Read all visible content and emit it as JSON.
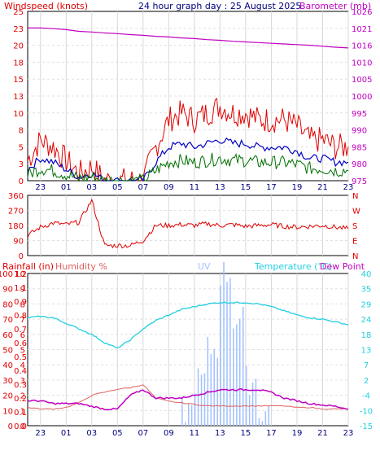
{
  "colors": {
    "wind_gust": "#e00000",
    "wind_avg": "#0000c0",
    "wind_min": "#007000",
    "barometer": "#c000c0",
    "direction": "#e00000",
    "temperature": "#20d0e0",
    "dewpoint": "#c000c0",
    "humidity": "#e06060",
    "uv": "#a0c0ff",
    "rain": "#e00000"
  },
  "charts": {
    "wind": {
      "title": "24 hour graph day : 25 August 2025",
      "left_label": "Windspeed (knots)",
      "right_label": "Barometer (mb)",
      "left_ticks": [
        "0",
        "3",
        "5",
        "8",
        "10",
        "13",
        "15",
        "18",
        "20",
        "23",
        "25"
      ],
      "right_ticks": [
        "975",
        "980",
        "985",
        "990",
        "995",
        "1000",
        "1005",
        "1010",
        "1016",
        "1021",
        "1026"
      ]
    },
    "direction": {
      "left_ticks": [
        "0",
        "90",
        "180",
        "270",
        "360"
      ],
      "right_ticks": [
        "N",
        "E",
        "S",
        "W",
        "N"
      ]
    },
    "temp": {
      "rain_label": "Rainfall (in)",
      "humidity_label": "Humidity %",
      "uv_label": "UV",
      "temp_label": "Temperature (°C)",
      "dew_label": "Dew Point",
      "rain_ticks": [
        "0.0",
        "0.1",
        "0.2",
        "0.3",
        "0.4",
        "0.5",
        "0.6",
        "0.7",
        "0.8",
        "0.9",
        "1.1",
        "1.2"
      ],
      "humidity_ticks": [
        "0",
        "10",
        "20",
        "30",
        "40",
        "50",
        "60",
        "70",
        "80",
        "90",
        "100"
      ],
      "uv_ticks": [
        "0",
        "1",
        "2",
        "3",
        "4",
        "5",
        "6",
        "7",
        "8",
        "9",
        "10"
      ],
      "temp_ticks": [
        "-15",
        "-10",
        "-4",
        "2",
        "7",
        "13",
        "18",
        "24",
        "29",
        "35",
        "40"
      ]
    }
  },
  "x_axis_labels": [
    "23",
    "01",
    "03",
    "05",
    "07",
    "09",
    "11",
    "13",
    "15",
    "17",
    "19",
    "21",
    "23"
  ],
  "chart_data": [
    {
      "type": "line",
      "title": "24 hour graph day : 25 August 2025",
      "xlabel": "",
      "ylabel": "Windspeed (knots)",
      "ylabel_right": "Barometer (mb)",
      "ylim": [
        0,
        25
      ],
      "ylim_right": [
        975,
        1026
      ],
      "x": [
        "22",
        "23",
        "00",
        "01",
        "02",
        "03",
        "04",
        "05",
        "06",
        "07",
        "08",
        "09",
        "10",
        "11",
        "12",
        "13",
        "14",
        "15",
        "16",
        "17",
        "18",
        "19",
        "20",
        "21",
        "22",
        "23"
      ],
      "series": [
        {
          "name": "Windspeed (knots)",
          "values": [
            3,
            6,
            5,
            3,
            1,
            2,
            0,
            0,
            0,
            0,
            5,
            9,
            10,
            9,
            10,
            11,
            10,
            10,
            9,
            9,
            9,
            8,
            6,
            6,
            5,
            5
          ]
        },
        {
          "name": "Barometer (mb)",
          "values": [
            1021,
            1021,
            1020.8,
            1020.5,
            1020,
            1019.8,
            1019.5,
            1019.3,
            1019,
            1018.8,
            1018.5,
            1018.3,
            1018,
            1017.8,
            1017.5,
            1017.3,
            1017,
            1016.8,
            1016.6,
            1016.4,
            1016.2,
            1016,
            1015.8,
            1015.5,
            1015.2,
            1015
          ]
        }
      ]
    },
    {
      "type": "line",
      "title": "",
      "xlabel": "",
      "ylabel": "",
      "ylim": [
        0,
        360
      ],
      "x": [
        "22",
        "23",
        "00",
        "01",
        "02",
        "03",
        "04",
        "05",
        "06",
        "07",
        "08",
        "09",
        "10",
        "11",
        "12",
        "13",
        "14",
        "15",
        "16",
        "17",
        "18",
        "19",
        "20",
        "21",
        "22",
        "23"
      ],
      "series": [
        {
          "name": "",
          "values": [
            120,
            170,
            195,
            185,
            200,
            330,
            60,
            60,
            60,
            90,
            180,
            180,
            185,
            180,
            190,
            180,
            185,
            175,
            180,
            185,
            175,
            170,
            175,
            180,
            170,
            160
          ]
        }
      ]
    },
    {
      "type": "line",
      "title": "",
      "xlabel": "",
      "ylabel": "Temperature (°C)",
      "ylim": [
        -15,
        40
      ],
      "x": [
        "22",
        "23",
        "00",
        "01",
        "02",
        "03",
        "04",
        "05",
        "06",
        "07",
        "08",
        "09",
        "10",
        "11",
        "12",
        "13",
        "14",
        "15",
        "16",
        "17",
        "18",
        "19",
        "20",
        "21",
        "22",
        "23"
      ],
      "series": [
        {
          "name": "Temperature (°C)",
          "values": [
            24,
            24.5,
            24,
            22,
            20,
            18,
            15,
            13,
            16,
            20,
            23,
            25,
            27,
            28,
            29,
            29.5,
            29.5,
            29.5,
            29,
            28,
            26.5,
            25,
            24,
            23.5,
            22.5,
            21.5
          ]
        },
        {
          "name": "Dew Point",
          "values": [
            -6,
            -6,
            -7,
            -7,
            -7,
            -8,
            -9,
            -9,
            -4,
            -2,
            -5,
            -5,
            -5,
            -4,
            -3,
            -2,
            -2,
            -2,
            -2,
            -3,
            -5,
            -6,
            -7,
            -7.5,
            -8,
            -9
          ]
        },
        {
          "name": "Humidity %",
          "values": [
            12,
            11,
            11,
            12,
            15,
            20,
            22,
            24,
            25,
            27,
            18,
            16,
            15,
            14,
            13,
            13,
            13,
            13,
            13,
            13,
            13,
            12,
            12,
            11,
            11,
            11
          ]
        },
        {
          "name": "UV",
          "values": [
            0,
            0,
            0,
            0,
            0,
            0,
            0,
            0,
            0,
            0,
            0,
            0,
            1,
            3,
            5,
            10,
            7,
            3,
            1,
            0,
            0,
            0,
            0,
            0,
            0,
            0
          ]
        }
      ]
    }
  ]
}
